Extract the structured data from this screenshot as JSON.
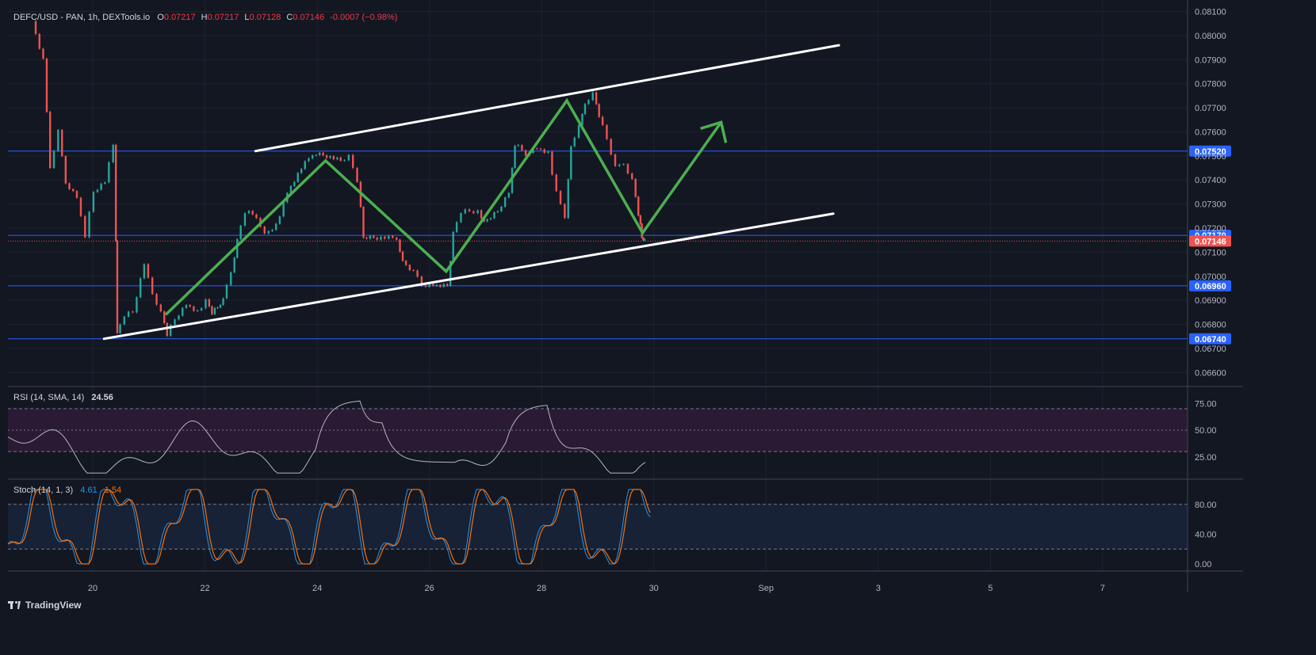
{
  "header": {
    "title": "DEFC/USD - PAN, 1h, DEXTools.io",
    "open_key": "O",
    "open": "0.07217",
    "high_key": "H",
    "high": "0.07217",
    "low_key": "L",
    "low": "0.07128",
    "close_key": "C",
    "close": "0.07146",
    "change": "-0.0007 (−0.98%)"
  },
  "rsi": {
    "label": "RSI (14, SMA, 14)",
    "value": "24.56",
    "ticks": [
      "75.00",
      "50.00",
      "25.00"
    ]
  },
  "stoch": {
    "label": "Stoch (14, 1, 3)",
    "k_value": "4.61",
    "d_value": "1.54",
    "ticks": [
      "80.00",
      "40.00",
      "0.00"
    ]
  },
  "footer": {
    "brand": "TradingView"
  },
  "colors": {
    "up": "#26a69a",
    "down": "#ef5350",
    "channel": "#ffffff",
    "projection": "#4caf50",
    "level": "#2962ff",
    "rsi": "#b2b5be",
    "stoch_k": "#2196f3",
    "stoch_d": "#ff6d00"
  },
  "chart_data": {
    "type": "candlestick",
    "symbol": "DEFC/USD",
    "interval": "1h",
    "x_ticks": [
      "20",
      "22",
      "24",
      "26",
      "28",
      "30",
      "Sep",
      "3",
      "5",
      "7"
    ],
    "y_ticks": [
      "0.08100",
      "0.08000",
      "0.07900",
      "0.07800",
      "0.07700",
      "0.07600",
      "0.07500",
      "0.07400",
      "0.07300",
      "0.07200",
      "0.07100",
      "0.07000",
      "0.06900",
      "0.06800",
      "0.06700",
      "0.06600"
    ],
    "ylim": [
      0.06545,
      0.08115
    ],
    "price_levels": [
      {
        "label": "0.07520",
        "value": 0.0752
      },
      {
        "label": "0.07170",
        "value": 0.0717
      },
      {
        "label": "0.06960",
        "value": 0.0696
      },
      {
        "label": "0.06740",
        "value": 0.0674
      }
    ],
    "last_price": {
      "label": "0.07146",
      "value": 0.07146
    },
    "channel_upper": [
      [
        22.9,
        0.0752
      ],
      [
        33.3,
        0.0796
      ]
    ],
    "channel_lower": [
      [
        20.2,
        0.0674
      ],
      [
        33.2,
        0.0726
      ]
    ],
    "projection": [
      [
        21.3,
        0.0684
      ],
      [
        24.15,
        0.0748
      ],
      [
        26.3,
        0.0702
      ],
      [
        28.45,
        0.0773
      ],
      [
        29.8,
        0.0718
      ],
      [
        31.2,
        0.0764
      ]
    ],
    "price_path": [
      [
        18.95,
        0.0806
      ],
      [
        19.15,
        0.079
      ],
      [
        19.27,
        0.0745
      ],
      [
        19.42,
        0.076
      ],
      [
        19.55,
        0.0739
      ],
      [
        19.75,
        0.0733
      ],
      [
        19.9,
        0.0717
      ],
      [
        20.05,
        0.0735
      ],
      [
        20.25,
        0.0739
      ],
      [
        20.4,
        0.0755
      ],
      [
        20.45,
        0.0676
      ],
      [
        20.6,
        0.0684
      ],
      [
        20.75,
        0.0685
      ],
      [
        20.95,
        0.0705
      ],
      [
        21.1,
        0.0693
      ],
      [
        21.25,
        0.0685
      ],
      [
        21.35,
        0.0676
      ],
      [
        21.5,
        0.0682
      ],
      [
        21.7,
        0.0688
      ],
      [
        21.9,
        0.0685
      ],
      [
        22.05,
        0.069
      ],
      [
        22.15,
        0.0685
      ],
      [
        22.25,
        0.0687
      ],
      [
        22.35,
        0.069
      ],
      [
        22.5,
        0.0702
      ],
      [
        22.6,
        0.0715
      ],
      [
        22.75,
        0.0727
      ],
      [
        22.95,
        0.0725
      ],
      [
        23.1,
        0.0717
      ],
      [
        23.3,
        0.0721
      ],
      [
        23.5,
        0.0735
      ],
      [
        23.75,
        0.0745
      ],
      [
        23.95,
        0.0751
      ],
      [
        24.2,
        0.075
      ],
      [
        24.45,
        0.0748
      ],
      [
        24.6,
        0.075
      ],
      [
        24.75,
        0.074
      ],
      [
        24.85,
        0.0716
      ],
      [
        25.1,
        0.0716
      ],
      [
        25.45,
        0.0716
      ],
      [
        25.55,
        0.0706
      ],
      [
        25.75,
        0.0702
      ],
      [
        25.9,
        0.0696
      ],
      [
        26.1,
        0.0696
      ],
      [
        26.35,
        0.0696
      ],
      [
        26.45,
        0.0718
      ],
      [
        26.6,
        0.0727
      ],
      [
        26.9,
        0.0727
      ],
      [
        27.0,
        0.0722
      ],
      [
        27.25,
        0.0727
      ],
      [
        27.45,
        0.0735
      ],
      [
        27.55,
        0.0755
      ],
      [
        27.75,
        0.0751
      ],
      [
        27.95,
        0.0753
      ],
      [
        28.15,
        0.0751
      ],
      [
        28.3,
        0.0735
      ],
      [
        28.45,
        0.0725
      ],
      [
        28.55,
        0.0754
      ],
      [
        28.7,
        0.0762
      ],
      [
        28.8,
        0.0772
      ],
      [
        28.95,
        0.0776
      ],
      [
        29.05,
        0.0767
      ],
      [
        29.2,
        0.0757
      ],
      [
        29.35,
        0.0745
      ],
      [
        29.5,
        0.0747
      ],
      [
        29.65,
        0.074
      ],
      [
        29.75,
        0.0726
      ],
      [
        29.8,
        0.0716
      ],
      [
        29.85,
        0.07146
      ]
    ]
  }
}
